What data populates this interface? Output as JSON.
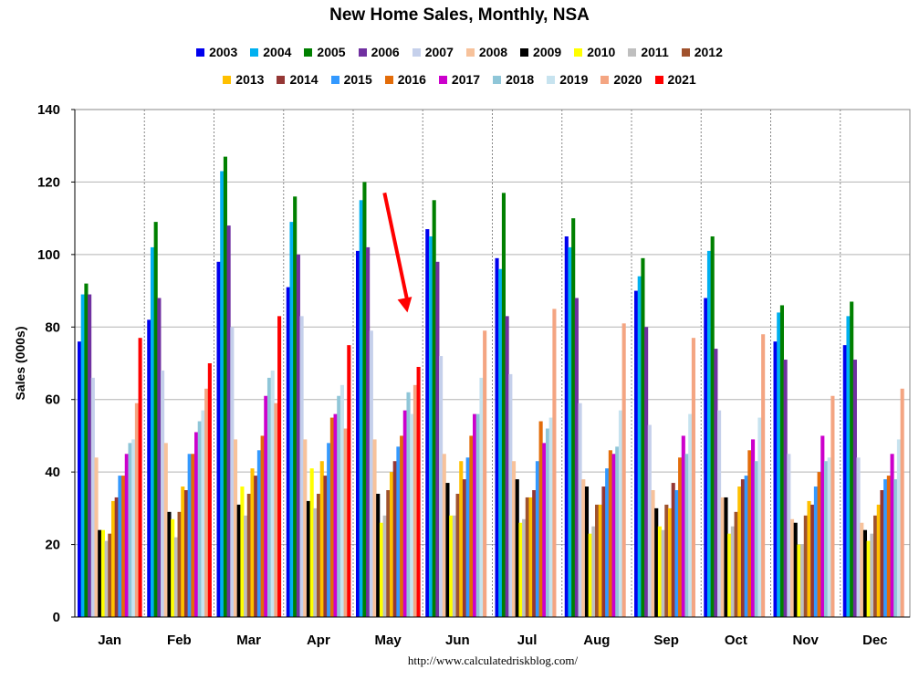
{
  "chart_data": {
    "type": "bar",
    "title": "New Home Sales, Monthly, NSA",
    "xlabel": "",
    "ylabel": "Sales (000s)",
    "ylim": [
      0,
      140
    ],
    "yticks": [
      0,
      20,
      40,
      60,
      80,
      100,
      120,
      140
    ],
    "grid": true,
    "legend_position": "top",
    "source": "http://www.calculatedriskblog.com/",
    "categories": [
      "Jan",
      "Feb",
      "Mar",
      "Apr",
      "May",
      "Jun",
      "Jul",
      "Aug",
      "Sep",
      "Oct",
      "Nov",
      "Dec"
    ],
    "series": [
      {
        "name": "2003",
        "color": "#0000ee",
        "values": [
          76,
          82,
          98,
          91,
          101,
          107,
          99,
          105,
          90,
          88,
          76,
          75
        ]
      },
      {
        "name": "2004",
        "color": "#00b0f0",
        "values": [
          89,
          102,
          123,
          109,
          115,
          105,
          96,
          102,
          94,
          101,
          84,
          83
        ]
      },
      {
        "name": "2005",
        "color": "#008000",
        "values": [
          92,
          109,
          127,
          116,
          120,
          115,
          117,
          110,
          99,
          105,
          86,
          87
        ]
      },
      {
        "name": "2006",
        "color": "#7030a0",
        "values": [
          89,
          88,
          108,
          100,
          102,
          98,
          83,
          88,
          80,
          74,
          71,
          71
        ]
      },
      {
        "name": "2007",
        "color": "#c5d0eb",
        "values": [
          66,
          68,
          80,
          83,
          79,
          72,
          67,
          59,
          53,
          57,
          45,
          44
        ]
      },
      {
        "name": "2008",
        "color": "#f7c29b",
        "values": [
          44,
          48,
          49,
          49,
          49,
          45,
          43,
          38,
          35,
          33,
          27,
          26
        ]
      },
      {
        "name": "2009",
        "color": "#000000",
        "values": [
          24,
          29,
          31,
          32,
          34,
          37,
          38,
          36,
          30,
          33,
          26,
          24
        ]
      },
      {
        "name": "2010",
        "color": "#ffff00",
        "values": [
          24,
          27,
          36,
          41,
          26,
          28,
          26,
          23,
          25,
          23,
          20,
          21
        ]
      },
      {
        "name": "2011",
        "color": "#bfbfbf",
        "values": [
          21,
          22,
          28,
          30,
          28,
          28,
          27,
          25,
          24,
          25,
          20,
          23
        ]
      },
      {
        "name": "2012",
        "color": "#a0522d",
        "values": [
          23,
          29,
          34,
          34,
          35,
          34,
          33,
          31,
          31,
          29,
          28,
          28
        ]
      },
      {
        "name": "2013",
        "color": "#ffc000",
        "values": [
          32,
          36,
          41,
          43,
          40,
          43,
          33,
          31,
          30,
          36,
          32,
          31
        ]
      },
      {
        "name": "2014",
        "color": "#953735",
        "values": [
          33,
          35,
          39,
          39,
          43,
          38,
          35,
          36,
          37,
          38,
          31,
          35
        ]
      },
      {
        "name": "2015",
        "color": "#3399ff",
        "values": [
          39,
          45,
          46,
          48,
          47,
          44,
          43,
          41,
          35,
          39,
          36,
          38
        ]
      },
      {
        "name": "2016",
        "color": "#e36c09",
        "values": [
          39,
          45,
          50,
          55,
          50,
          50,
          54,
          46,
          44,
          46,
          40,
          39
        ]
      },
      {
        "name": "2017",
        "color": "#cc00cc",
        "values": [
          45,
          51,
          61,
          56,
          57,
          56,
          48,
          45,
          50,
          49,
          50,
          45
        ]
      },
      {
        "name": "2018",
        "color": "#8fc6d8",
        "values": [
          48,
          54,
          66,
          61,
          62,
          56,
          52,
          47,
          45,
          43,
          43,
          38
        ]
      },
      {
        "name": "2019",
        "color": "#c7e3ef",
        "values": [
          49,
          57,
          68,
          64,
          56,
          66,
          55,
          57,
          56,
          55,
          44,
          49
        ]
      },
      {
        "name": "2020",
        "color": "#f4a582",
        "values": [
          59,
          63,
          59,
          52,
          64,
          79,
          85,
          81,
          77,
          78,
          61,
          63
        ]
      },
      {
        "name": "2021",
        "color": "#ff0000",
        "values": [
          77,
          70,
          83,
          75,
          69,
          null,
          null,
          null,
          null,
          null,
          null,
          null
        ]
      }
    ],
    "annotations": [
      {
        "type": "arrow",
        "color": "#ff0000",
        "from_category": "May",
        "from_value": 117,
        "to_value": 84
      }
    ]
  }
}
